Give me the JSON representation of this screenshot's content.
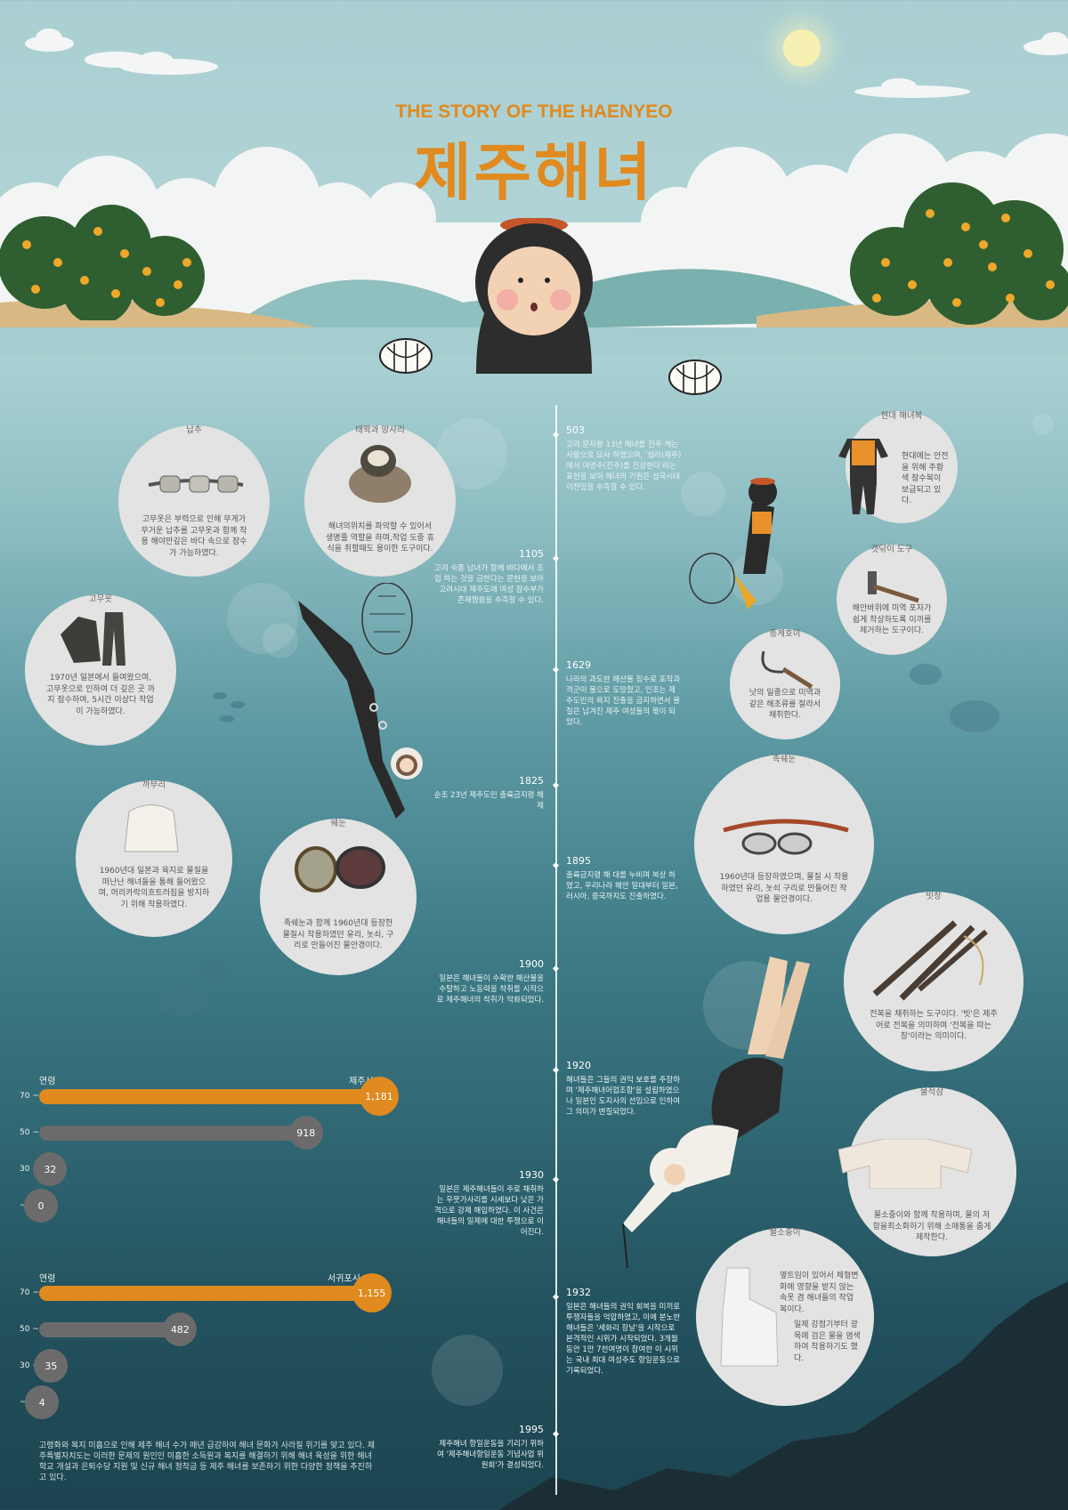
{
  "header": {
    "title_en": "THE STORY OF THE HAENYEO",
    "title_ko": "제주해녀"
  },
  "colors": {
    "accent": "#e08a1f",
    "sea_top": "#a4cdd0",
    "sea_bottom": "#1b4450",
    "bar_gray": "#6b6b6b"
  },
  "tools_left": [
    {
      "name": "납추",
      "desc": "고무옷은 부력으로 인해 무게가 무거운 납추를 고무옷과 함께 착용 해야만깊은 바다 속으로 잠수가 가능하였다."
    },
    {
      "name": "태왁과 망사리",
      "desc": "해녀의위치를 파악할 수 있어서 생명줄 역할을 하며,작업 도중 휴식을 취할때도 용이한 도구이다."
    },
    {
      "name": "고무옷",
      "desc": "1970년 일본에서 들여왔으며, 고무옷으로 인하여 더 깊은 곳 까지 잠수하여, 5시간 이상다 작업이 가능하였다."
    },
    {
      "name": "까부리",
      "desc": "1960년대 일본과 육지로 물질을 떠난난 해녀들을 통해 들어왔으며, 머리카락의흐트러짐을 방지하기 위해 착용하였다."
    },
    {
      "name": "쉐눈",
      "desc": "족쉐눈과 함께 1960년대 등장한 물질시 착용하였던 유리, 놋쇠, 구리로 만들어진 물안경이다."
    }
  ],
  "tools_right": [
    {
      "name": "현대 해녀복",
      "desc": "현대에는 안전을 위해 주황색 잠수복이 보급되고 있다."
    },
    {
      "name": "갯닦이 도구",
      "desc": "해안바위에 미역 포자가 쉽게 착상하도록 이끼를 제거하는 도구이다."
    },
    {
      "name": "종게호미",
      "desc": "낫의 일종으로 미역과 같은 해초류를 잘라서 채취한다."
    },
    {
      "name": "족쉐눈",
      "desc": "1960년대 등장하였으며, 물질 시 착용하였던 유리, 놋쇠 구리로 만들어진 작업용 물안경이다."
    },
    {
      "name": "빗창",
      "desc": "전복을 채취하는 도구이다. '빗'은 제주어로 전복을 의미하며 '전복을 따는 창'이라는 의미이다."
    },
    {
      "name": "물적삼",
      "desc": "물소중이와 함께 착용하며, 물의 저항을최소화하기 위해 소매통을 줍게 제작한다."
    },
    {
      "name": "물소중이",
      "desc": "옆트임이 있어서 체형변화에 영향을 받지 않는 속옷 겸 해녀들의 작업복이다.",
      "desc2": "일제 강점기부터 광목에 검은 물을 염색하여 착용하기도 했다."
    }
  ],
  "timeline": [
    {
      "year": "503",
      "text": "고려 문자왕 13년 해녀를 진주 캐는 사람으로 묘사 하였으며, '섭라(제주)에서 야명주(진주)를 진상한다'라는 표현을 보아 해녀의 기원은 삼국시대 이전임을 추측할 수 있다."
    },
    {
      "year": "1105",
      "text": "고려 숙종 남녀가 함께 바다에서 조업 하는 것을 금한다는 문헌을 보아 고려시대 제주도에 여성 잠수부가 존재했음을 추측할 수 있다."
    },
    {
      "year": "1629",
      "text": "나라의 과도한 해산물 징수로 포작과 격군이 물으로 도망쳤고, 인조는 제주도민의 육지 진출을 금지하면서 물질은 남겨진 제주 여성들의 몫이 되었다."
    },
    {
      "year": "1825",
      "text": "순조 23년 제주도민 출륙금지령 해제"
    },
    {
      "year": "1895",
      "text": "출륙금지령 해 대를 누비며 복상 하였고, 우리나라 해안 일대부터 일본, 러시아, 중국까지도 진출하였다."
    },
    {
      "year": "1900",
      "text": "일본은 해녀들이 수확한 해산물을 수탈하고 노동력을 착취를 시작으로 제주해녀의 착취가 악화되었다."
    },
    {
      "year": "1920",
      "text": "해녀들은 그들의 권익 보호를 주장하며 '제주해녀어업조합'을 설립하였으나 일본인 도지사의 선임으로 인하여 그 의미가 변질되었다."
    },
    {
      "year": "1930",
      "text": "일본은 제주해녀들이 주로 채취하는 우뭇가사리를 시세보다 낮은 가격으로 강제 해입하였다. 이 사건은 해녀들의 일제에 대한 투쟁으로 이어진다."
    },
    {
      "year": "1932",
      "text": "일본은 해녀들의 권익 회복을 미끼로 투쟁자들을 억압하였고, 이에 분노한 해녀들은 '세화리 장날'을 시작으로 본격적인 시위가 시작되었다. 3개월 동안 1만 7천여명이 참여한 이 시위는 국내 최대 여성주도 항일운동으로 기록되었다."
    },
    {
      "year": "1995",
      "text": "제주해녀 항일운동을 기리기 위하여 '제주해녀항일운동 기념사업 위원회'가 결성되었다."
    }
  ],
  "stats_jeju": {
    "age_header": "연령",
    "region": "제주시",
    "rows": [
      {
        "age": "70 ~",
        "value": "1,181",
        "n": 1181,
        "highlight": true
      },
      {
        "age": "50 ~ 69",
        "value": "918",
        "n": 918,
        "highlight": false
      },
      {
        "age": "30 ~ 49",
        "value": "32",
        "n": 32,
        "highlight": false
      },
      {
        "age": "~ 30",
        "value": "0",
        "n": 0,
        "highlight": false
      }
    ]
  },
  "stats_seogwipo": {
    "age_header": "연령",
    "region": "서귀포시",
    "rows": [
      {
        "age": "70 ~",
        "value": "1,155",
        "n": 1155,
        "highlight": true
      },
      {
        "age": "50 ~ 69",
        "value": "482",
        "n": 482,
        "highlight": false
      },
      {
        "age": "30 ~ 49",
        "value": "35",
        "n": 35,
        "highlight": false
      },
      {
        "age": "~ 30",
        "value": "4",
        "n": 4,
        "highlight": false
      }
    ]
  },
  "footer": {
    "text": "고령화와 복지 미흡으로 인해 제주 해녀 수가 매년 급감하여 해녀 문화가 사라질 위기를 맞고 있다. 제주특별자치도는 이러한 문제의 원인인 미흡한 소득원과 복지를 해결하기 위해 해녀 육성을 위한 해녀학교 개설과 은퇴수당 지원 및 신규 해녀 정착금 등 제주 해녀를 보존하기 위한 다양한 정책을 추진하고 있다."
  }
}
